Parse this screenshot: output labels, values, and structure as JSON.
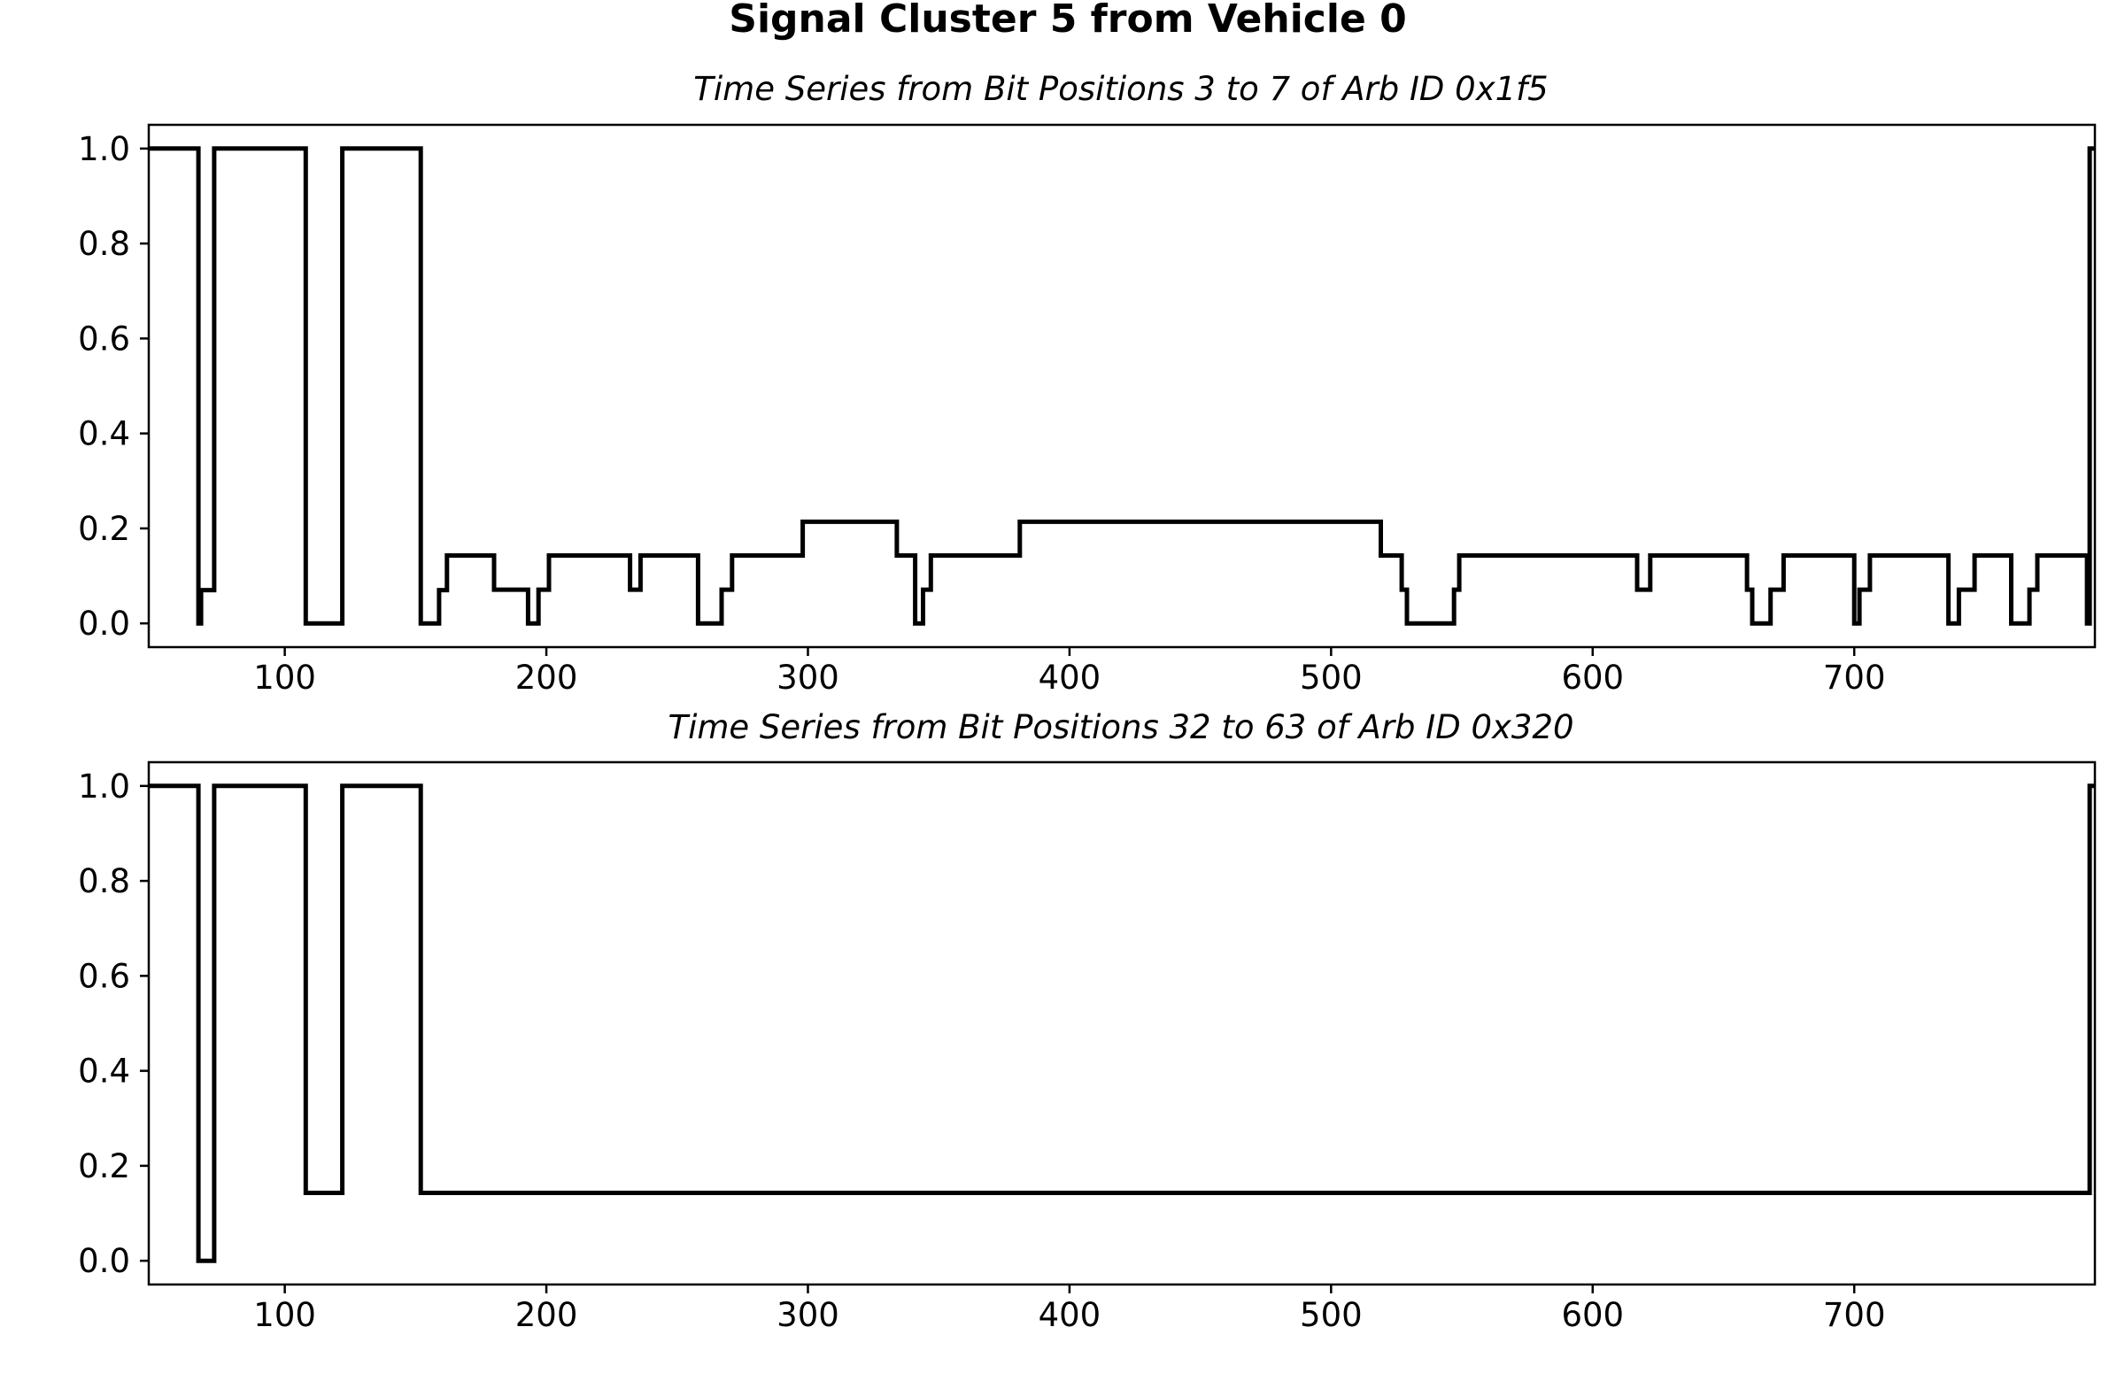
{
  "figure_title": "Signal Cluster 5 from Vehicle 0",
  "chart_data": [
    {
      "type": "line",
      "title": "Time Series from Bit Positions 3 to 7 of Arb ID 0x1f5",
      "xlabel": "",
      "ylabel": "",
      "xlim": [
        48,
        792
      ],
      "ylim": [
        -0.05,
        1.05
      ],
      "grid": false,
      "xticks": [
        100,
        200,
        300,
        400,
        500,
        600,
        700
      ],
      "xtick_labels": [
        "100",
        "200",
        "300",
        "400",
        "500",
        "600",
        "700"
      ],
      "yticks": [
        0.0,
        0.2,
        0.4,
        0.6,
        0.8,
        1.0
      ],
      "ytick_labels": [
        "0.0",
        "0.2",
        "0.4",
        "0.6",
        "0.8",
        "1.0"
      ],
      "series": [
        {
          "color": "#000000",
          "x": [
            48,
            67,
            68,
            70,
            73,
            107,
            108,
            122,
            151,
            152,
            159,
            162,
            180,
            193,
            197,
            201,
            232,
            236,
            258,
            267,
            271,
            298,
            334,
            341,
            344,
            347,
            381,
            519,
            527,
            529,
            547,
            549,
            617,
            622,
            659,
            661,
            668,
            673,
            700,
            702,
            706,
            736,
            740,
            746,
            760,
            767,
            770,
            789,
            790,
            792
          ],
          "y": [
            1.0,
            0.0,
            0.07,
            0.07,
            1.0,
            1.0,
            0.0,
            1.0,
            1.0,
            0.0,
            0.07,
            0.143,
            0.071,
            0.0,
            0.071,
            0.143,
            0.071,
            0.143,
            0.0,
            0.071,
            0.143,
            0.214,
            0.143,
            0.0,
            0.071,
            0.143,
            0.214,
            0.143,
            0.071,
            0.0,
            0.071,
            0.143,
            0.071,
            0.143,
            0.071,
            0.0,
            0.071,
            0.143,
            0.0,
            0.071,
            0.143,
            0.0,
            0.071,
            0.143,
            0.0,
            0.071,
            0.143,
            0.0,
            1.0,
            1.0
          ]
        }
      ]
    },
    {
      "type": "line",
      "title": "Time Series from Bit Positions 32 to 63 of Arb ID 0x320",
      "xlabel": "",
      "ylabel": "",
      "xlim": [
        48,
        792
      ],
      "ylim": [
        -0.05,
        1.05
      ],
      "grid": false,
      "xticks": [
        100,
        200,
        300,
        400,
        500,
        600,
        700
      ],
      "xtick_labels": [
        "100",
        "200",
        "300",
        "400",
        "500",
        "600",
        "700"
      ],
      "yticks": [
        0.0,
        0.2,
        0.4,
        0.6,
        0.8,
        1.0
      ],
      "ytick_labels": [
        "0.0",
        "0.2",
        "0.4",
        "0.6",
        "0.8",
        "1.0"
      ],
      "series": [
        {
          "color": "#000000",
          "x": [
            48,
            67,
            73,
            107,
            108,
            122,
            151,
            152,
            790,
            792
          ],
          "y": [
            1.0,
            0.0,
            1.0,
            1.0,
            0.143,
            1.0,
            1.0,
            0.143,
            1.0,
            1.0
          ]
        }
      ]
    }
  ]
}
